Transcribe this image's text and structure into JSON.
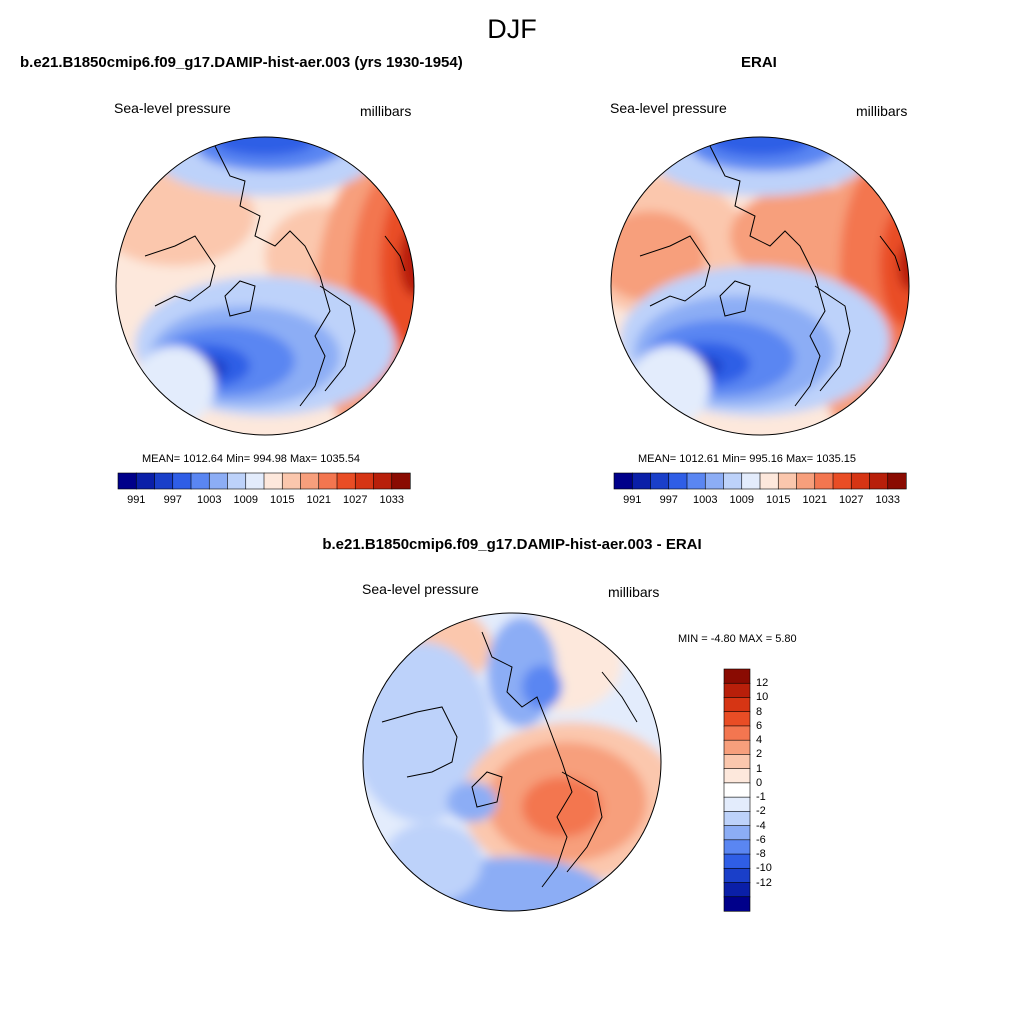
{
  "page": {
    "title": "DJF"
  },
  "colors": {
    "seq": [
      "#00008a",
      "#0a1fa8",
      "#1a3fc9",
      "#2f5ee6",
      "#5a86f2",
      "#8cadf5",
      "#bdd2fa",
      "#e3ecfc",
      "#fde8dc",
      "#fbc7ad",
      "#f79f7c",
      "#f37650",
      "#e94d25",
      "#d63514",
      "#b81f0a",
      "#8a0b02"
    ],
    "diff": [
      "#8a0b02",
      "#b81f0a",
      "#d63514",
      "#e94d25",
      "#f37650",
      "#f79f7c",
      "#fbc7ad",
      "#fde8dc",
      "#ffffff",
      "#e3ecfc",
      "#bdd2fa",
      "#8cadf5",
      "#5a86f2",
      "#2f5ee6",
      "#1a3fc9",
      "#0a1fa8",
      "#00008a"
    ]
  },
  "panels": [
    {
      "title": "b.e21.B1850cmip6.f09_g17.DAMIP-hist-aer.003 (yrs 1930-1954)",
      "left_label": "Sea-level pressure",
      "right_label": "millibars",
      "stats": "MEAN= 1012.64  Min= 994.98  Max= 1035.54",
      "ticks": [
        "991",
        "997",
        "1003",
        "1009",
        "1015",
        "1021",
        "1027",
        "1033"
      ]
    },
    {
      "title": "ERAI",
      "left_label": "Sea-level pressure",
      "right_label": "millibars",
      "stats": "MEAN= 1012.61  Min= 995.16  Max= 1035.15",
      "ticks": [
        "991",
        "997",
        "1003",
        "1009",
        "1015",
        "1021",
        "1027",
        "1033"
      ]
    },
    {
      "title": "b.e21.B1850cmip6.f09_g17.DAMIP-hist-aer.003 - ERAI",
      "left_label": "Sea-level pressure",
      "right_label": "millibars",
      "stats": "MIN =  -4.80 MAX =   5.80",
      "ticks": [
        "12",
        "10",
        "8",
        "6",
        "4",
        "2",
        "1",
        "0",
        "-1",
        "-2",
        "-4",
        "-6",
        "-8",
        "-10",
        "-12"
      ]
    }
  ]
}
